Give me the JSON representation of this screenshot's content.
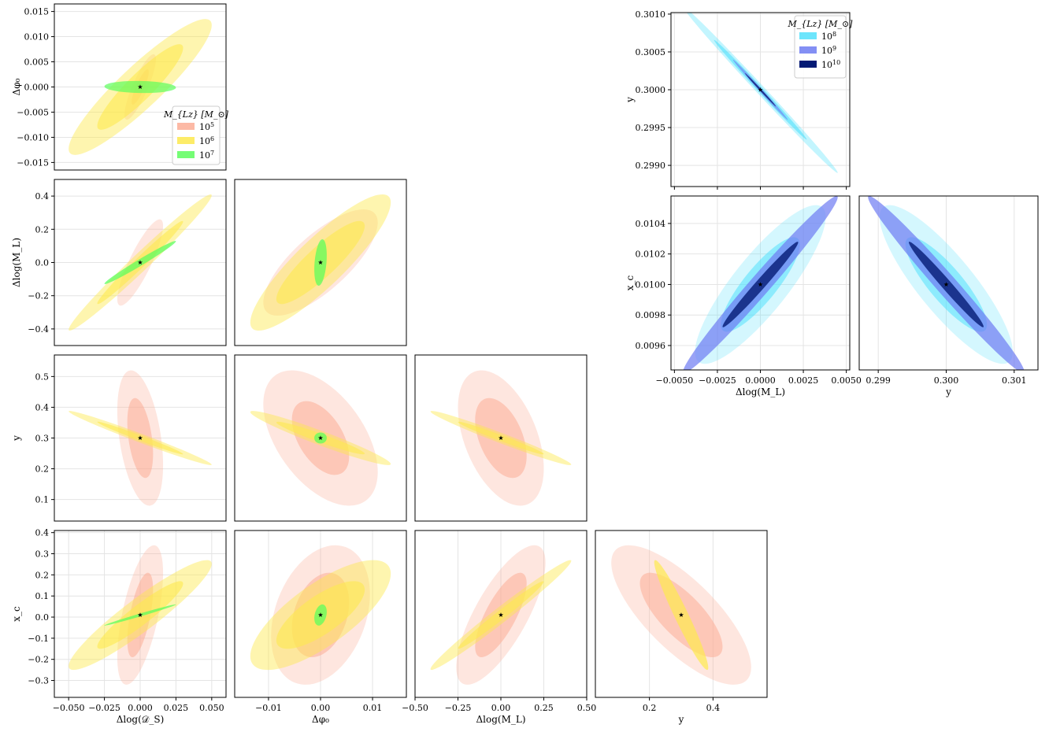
{
  "colors": {
    "m1e5": "#fbad95",
    "m1e6": "#fde94e",
    "m1e7": "#5dfd5d",
    "m1e8": "#52e1fb",
    "m1e9": "#6d7bf2",
    "m1e10": "#041a74",
    "grid": "#e4e4e4",
    "star": "#000000"
  },
  "legends": {
    "left": {
      "title": "M_{Lz} [M_⊙]",
      "entries": [
        {
          "label": "10",
          "exponent": "5",
          "color_key": "m1e5"
        },
        {
          "label": "10",
          "exponent": "6",
          "color_key": "m1e6"
        },
        {
          "label": "10",
          "exponent": "7",
          "color_key": "m1e7"
        }
      ]
    },
    "right": {
      "title": "M_{Lz} [M_⊙]",
      "entries": [
        {
          "label": "10",
          "exponent": "8",
          "color_key": "m1e8"
        },
        {
          "label": "10",
          "exponent": "9",
          "color_key": "m1e9"
        },
        {
          "label": "10",
          "exponent": "10",
          "color_key": "m1e10"
        }
      ]
    }
  },
  "chart_data": [
    {
      "type": "scatter",
      "id": "L00",
      "xlim": [
        -0.06,
        0.06
      ],
      "ylim": [
        -0.0165,
        0.0165
      ],
      "xticks": [],
      "yticks": [
        "0.015",
        "0.010",
        "0.005",
        "0.000",
        "−0.005",
        "−0.010",
        "−0.015"
      ],
      "ytickvals": [
        0.015,
        0.01,
        0.005,
        0,
        -0.005,
        -0.01,
        -0.015
      ],
      "xlabel": "",
      "ylabel": "Δφ₀",
      "truth": [
        0,
        0
      ],
      "contours": [
        {
          "color_key": "m1e5",
          "alpha": 0.3,
          "rx": 0.011,
          "ry": 0.0065,
          "rho": 0.85
        },
        {
          "color_key": "m1e5",
          "alpha": 0.55,
          "rx": 0.006,
          "ry": 0.0035,
          "rho": 0.85
        },
        {
          "color_key": "m1e6",
          "alpha": 0.45,
          "rx": 0.05,
          "ry": 0.0135,
          "rho": 0.91
        },
        {
          "color_key": "m1e6",
          "alpha": 0.6,
          "rx": 0.03,
          "ry": 0.0085,
          "rho": 0.91
        },
        {
          "color_key": "m1e7",
          "alpha": 0.7,
          "rx": 0.025,
          "ry": 0.0012,
          "rho": -0.1
        }
      ]
    },
    {
      "type": "scatter",
      "id": "L10",
      "xlim": [
        -0.06,
        0.06
      ],
      "ylim": [
        -0.5,
        0.5
      ],
      "xticks": [],
      "yticks": [
        "0.4",
        "0.2",
        "0.0",
        "−0.2",
        "−0.4"
      ],
      "ytickvals": [
        0.4,
        0.2,
        0,
        -0.2,
        -0.4
      ],
      "xlabel": "",
      "ylabel": "Δlog(M_L)",
      "truth": [
        0,
        0
      ],
      "contours": [
        {
          "color_key": "m1e5",
          "alpha": 0.3,
          "rx": 0.016,
          "ry": 0.26,
          "rho": 0.85
        },
        {
          "color_key": "m1e6",
          "alpha": 0.45,
          "rx": 0.05,
          "ry": 0.41,
          "rho": 0.985
        },
        {
          "color_key": "m1e6",
          "alpha": 0.6,
          "rx": 0.03,
          "ry": 0.25,
          "rho": 0.985
        },
        {
          "color_key": "m1e7",
          "alpha": 0.75,
          "rx": 0.025,
          "ry": 0.13,
          "rho": 0.985
        }
      ]
    },
    {
      "type": "scatter",
      "id": "L11",
      "xlim": [
        -0.0165,
        0.0165
      ],
      "ylim": [
        -0.5,
        0.5
      ],
      "xticks": [],
      "yticks": [],
      "ytickvals": [],
      "xlabel": "",
      "ylabel": "",
      "truth": [
        0,
        0
      ],
      "contours": [
        {
          "color_key": "m1e5",
          "alpha": 0.3,
          "rx": 0.011,
          "ry": 0.32,
          "rho": 0.75
        },
        {
          "color_key": "m1e6",
          "alpha": 0.45,
          "rx": 0.0135,
          "ry": 0.41,
          "rho": 0.88
        },
        {
          "color_key": "m1e6",
          "alpha": 0.6,
          "rx": 0.0085,
          "ry": 0.25,
          "rho": 0.88
        },
        {
          "color_key": "m1e7",
          "alpha": 0.75,
          "rx": 0.0012,
          "ry": 0.14,
          "rho": 0.3
        }
      ]
    },
    {
      "type": "scatter",
      "id": "L20",
      "xlim": [
        -0.06,
        0.06
      ],
      "ylim": [
        0.03,
        0.57
      ],
      "xticks": [],
      "yticks": [
        "0.5",
        "0.4",
        "0.3",
        "0.2",
        "0.1"
      ],
      "ytickvals": [
        0.5,
        0.4,
        0.3,
        0.2,
        0.1
      ],
      "xlabel": "",
      "ylabel": "y",
      "truth": [
        0,
        0.3
      ],
      "contours": [
        {
          "color_key": "m1e5",
          "alpha": 0.3,
          "rx": 0.016,
          "ry": 0.22,
          "rho": -0.4
        },
        {
          "color_key": "m1e5",
          "alpha": 0.55,
          "rx": 0.009,
          "ry": 0.13,
          "rho": -0.4
        },
        {
          "color_key": "m1e6",
          "alpha": 0.45,
          "rx": 0.05,
          "ry": 0.088,
          "rho": -0.985
        },
        {
          "color_key": "m1e6",
          "alpha": 0.6,
          "rx": 0.03,
          "ry": 0.053,
          "rho": -0.985
        }
      ]
    },
    {
      "type": "scatter",
      "id": "L21",
      "xlim": [
        -0.0165,
        0.0165
      ],
      "ylim": [
        0.03,
        0.57
      ],
      "xticks": [],
      "yticks": [],
      "ytickvals": [],
      "xlabel": "",
      "ylabel": "",
      "truth": [
        0,
        0.3
      ],
      "contours": [
        {
          "color_key": "m1e5",
          "alpha": 0.3,
          "rx": 0.011,
          "ry": 0.22,
          "rho": -0.5
        },
        {
          "color_key": "m1e5",
          "alpha": 0.55,
          "rx": 0.0055,
          "ry": 0.12,
          "rho": -0.5
        },
        {
          "color_key": "m1e6",
          "alpha": 0.45,
          "rx": 0.0135,
          "ry": 0.088,
          "rho": -0.96
        },
        {
          "color_key": "m1e6",
          "alpha": 0.6,
          "rx": 0.0085,
          "ry": 0.053,
          "rho": -0.96
        },
        {
          "color_key": "m1e7",
          "alpha": 0.75,
          "rx": 0.0012,
          "ry": 0.018,
          "rho": 0.0
        }
      ]
    },
    {
      "type": "scatter",
      "id": "L22",
      "xlim": [
        -0.5,
        0.5
      ],
      "ylim": [
        0.03,
        0.57
      ],
      "xticks": [],
      "yticks": [],
      "ytickvals": [],
      "xlabel": "",
      "ylabel": "",
      "truth": [
        0,
        0.3
      ],
      "contours": [
        {
          "color_key": "m1e5",
          "alpha": 0.3,
          "rx": 0.25,
          "ry": 0.22,
          "rho": -0.45
        },
        {
          "color_key": "m1e5",
          "alpha": 0.55,
          "rx": 0.15,
          "ry": 0.13,
          "rho": -0.45
        },
        {
          "color_key": "m1e6",
          "alpha": 0.45,
          "rx": 0.41,
          "ry": 0.088,
          "rho": -0.98
        },
        {
          "color_key": "m1e6",
          "alpha": 0.6,
          "rx": 0.25,
          "ry": 0.053,
          "rho": -0.98
        }
      ]
    },
    {
      "type": "scatter",
      "id": "L30",
      "xlim": [
        -0.06,
        0.06
      ],
      "ylim": [
        -0.38,
        0.41
      ],
      "xticks": [
        "−0.050",
        "−0.025",
        "0.000",
        "0.025",
        "0.050"
      ],
      "xtickvals": [
        -0.05,
        -0.025,
        0,
        0.025,
        0.05
      ],
      "yticks": [
        "0.4",
        "0.3",
        "0.2",
        "0.1",
        "0.0",
        "−0.1",
        "−0.2",
        "−0.3"
      ],
      "ytickvals": [
        0.4,
        0.3,
        0.2,
        0.1,
        0,
        -0.1,
        -0.2,
        -0.3
      ],
      "xlabel": "Δlog(𝒟_S)",
      "ylabel": "x_c",
      "truth": [
        0,
        0.01
      ],
      "contours": [
        {
          "color_key": "m1e5",
          "alpha": 0.3,
          "rx": 0.016,
          "ry": 0.33,
          "rho": 0.6
        },
        {
          "color_key": "m1e5",
          "alpha": 0.55,
          "rx": 0.009,
          "ry": 0.2,
          "rho": 0.6
        },
        {
          "color_key": "m1e6",
          "alpha": 0.45,
          "rx": 0.05,
          "ry": 0.26,
          "rho": 0.93
        },
        {
          "color_key": "m1e6",
          "alpha": 0.6,
          "rx": 0.03,
          "ry": 0.16,
          "rho": 0.93
        },
        {
          "color_key": "m1e7",
          "alpha": 0.75,
          "rx": 0.025,
          "ry": 0.05,
          "rho": 0.99
        }
      ]
    },
    {
      "type": "scatter",
      "id": "L31",
      "xlim": [
        -0.0165,
        0.0165
      ],
      "ylim": [
        -0.38,
        0.41
      ],
      "xticks": [
        "−0.01",
        "0.00",
        "0.01"
      ],
      "xtickvals": [
        -0.01,
        0,
        0.01
      ],
      "yticks": [],
      "ytickvals": [],
      "xlabel": "Δφ₀",
      "ylabel": "",
      "truth": [
        0,
        0.01
      ],
      "contours": [
        {
          "color_key": "m1e5",
          "alpha": 0.3,
          "rx": 0.0095,
          "ry": 0.33,
          "rho": 0.3
        },
        {
          "color_key": "m1e5",
          "alpha": 0.55,
          "rx": 0.0055,
          "ry": 0.2,
          "rho": 0.3
        },
        {
          "color_key": "m1e6",
          "alpha": 0.45,
          "rx": 0.0135,
          "ry": 0.26,
          "rho": 0.75
        },
        {
          "color_key": "m1e6",
          "alpha": 0.6,
          "rx": 0.0085,
          "ry": 0.16,
          "rho": 0.75
        },
        {
          "color_key": "m1e7",
          "alpha": 0.75,
          "rx": 0.0012,
          "ry": 0.05,
          "rho": 0.3
        }
      ]
    },
    {
      "type": "scatter",
      "id": "L32",
      "xlim": [
        -0.5,
        0.5
      ],
      "ylim": [
        -0.38,
        0.41
      ],
      "xticks": [
        "−0.50",
        "−0.25",
        "0.00",
        "0.25",
        "0.50"
      ],
      "xtickvals": [
        -0.5,
        -0.25,
        0,
        0.25,
        0.5
      ],
      "yticks": [],
      "ytickvals": [],
      "xlabel": "Δlog(M_L)",
      "ylabel": "",
      "truth": [
        0,
        0.01
      ],
      "contours": [
        {
          "color_key": "m1e5",
          "alpha": 0.3,
          "rx": 0.26,
          "ry": 0.33,
          "rho": 0.75
        },
        {
          "color_key": "m1e5",
          "alpha": 0.55,
          "rx": 0.15,
          "ry": 0.2,
          "rho": 0.75
        },
        {
          "color_key": "m1e6",
          "alpha": 0.45,
          "rx": 0.41,
          "ry": 0.26,
          "rho": 0.985
        },
        {
          "color_key": "m1e6",
          "alpha": 0.6,
          "rx": 0.25,
          "ry": 0.16,
          "rho": 0.985
        }
      ]
    },
    {
      "type": "scatter",
      "id": "L33",
      "xlim": [
        0.03,
        0.57
      ],
      "ylim": [
        -0.38,
        0.41
      ],
      "xticks": [
        "0.2",
        "0.4"
      ],
      "xtickvals": [
        0.2,
        0.4
      ],
      "yticks": [],
      "ytickvals": [],
      "xlabel": "y",
      "ylabel": "",
      "truth": [
        0.3,
        0.01
      ],
      "contours": [
        {
          "color_key": "m1e5",
          "alpha": 0.3,
          "rx": 0.22,
          "ry": 0.33,
          "rho": -0.75
        },
        {
          "color_key": "m1e5",
          "alpha": 0.55,
          "rx": 0.13,
          "ry": 0.2,
          "rho": -0.75
        },
        {
          "color_key": "m1e6",
          "alpha": 0.7,
          "rx": 0.085,
          "ry": 0.26,
          "rho": -0.96
        }
      ]
    },
    {
      "type": "scatter",
      "id": "R00",
      "xlim": [
        -0.0052,
        0.0052
      ],
      "ylim": [
        0.29872,
        0.30102
      ],
      "xticks": [],
      "xtickvals": [
        -0.005,
        -0.0025,
        0,
        0.0025,
        0.005
      ],
      "yticks": [
        "0.3010",
        "0.3005",
        "0.3000",
        "0.2995",
        "0.2990"
      ],
      "ytickvals": [
        0.301,
        0.3005,
        0.3,
        0.2995,
        0.299
      ],
      "xlabel": "",
      "ylabel": "y",
      "truth": [
        0,
        0.3
      ],
      "contours": [
        {
          "color_key": "m1e8",
          "alpha": 0.35,
          "rx": 0.0045,
          "ry": 0.0011,
          "rho": -0.997
        },
        {
          "color_key": "m1e8",
          "alpha": 0.6,
          "rx": 0.0027,
          "ry": 0.00066,
          "rho": -0.997
        },
        {
          "color_key": "m1e9",
          "alpha": 0.6,
          "rx": 0.0016,
          "ry": 0.0004,
          "rho": -0.997
        },
        {
          "color_key": "m1e10",
          "alpha": 0.8,
          "rx": 0.0009,
          "ry": 0.00022,
          "rho": -0.997
        }
      ]
    },
    {
      "type": "scatter",
      "id": "R10",
      "xlim": [
        -0.0052,
        0.0052
      ],
      "ylim": [
        0.00944,
        0.01058
      ],
      "xticks": [
        "−0.0050",
        "−0.0025",
        "0.0000",
        "0.0025",
        "0.0050"
      ],
      "xtickvals": [
        -0.005,
        -0.0025,
        0,
        0.0025,
        0.005
      ],
      "yticks": [
        "0.0104",
        "0.0102",
        "0.0100",
        "0.0098",
        "0.0096"
      ],
      "ytickvals": [
        0.0104,
        0.0102,
        0.01,
        0.0098,
        0.0096
      ],
      "xlabel": "Δlog(M_L)",
      "ylabel": "x_c",
      "truth": [
        0,
        0.01
      ],
      "contours": [
        {
          "color_key": "m1e8",
          "alpha": 0.25,
          "rx": 0.0038,
          "ry": 0.00052,
          "rho": 0.85
        },
        {
          "color_key": "m1e8",
          "alpha": 0.55,
          "rx": 0.0023,
          "ry": 0.00031,
          "rho": 0.85
        },
        {
          "color_key": "m1e9",
          "alpha": 0.7,
          "rx": 0.0045,
          "ry": 0.00058,
          "rho": 0.985
        },
        {
          "color_key": "m1e10",
          "alpha": 0.8,
          "rx": 0.0022,
          "ry": 0.00028,
          "rho": 0.985
        }
      ]
    },
    {
      "type": "scatter",
      "id": "R11",
      "xlim": [
        0.29872,
        0.30135
      ],
      "ylim": [
        0.00944,
        0.01058
      ],
      "xticks": [
        "0.299",
        "0.300",
        "0.301"
      ],
      "xtickvals": [
        0.299,
        0.3,
        0.301
      ],
      "yticks": [],
      "ytickvals": [],
      "xlabel": "y",
      "ylabel": "",
      "truth": [
        0.3,
        0.01
      ],
      "contours": [
        {
          "color_key": "m1e8",
          "alpha": 0.25,
          "rx": 0.00098,
          "ry": 0.00052,
          "rho": -0.85
        },
        {
          "color_key": "m1e8",
          "alpha": 0.55,
          "rx": 0.0006,
          "ry": 0.00031,
          "rho": -0.85
        },
        {
          "color_key": "m1e9",
          "alpha": 0.7,
          "rx": 0.00115,
          "ry": 0.00058,
          "rho": -0.985
        },
        {
          "color_key": "m1e10",
          "alpha": 0.8,
          "rx": 0.00055,
          "ry": 0.00028,
          "rho": -0.985
        }
      ]
    }
  ]
}
